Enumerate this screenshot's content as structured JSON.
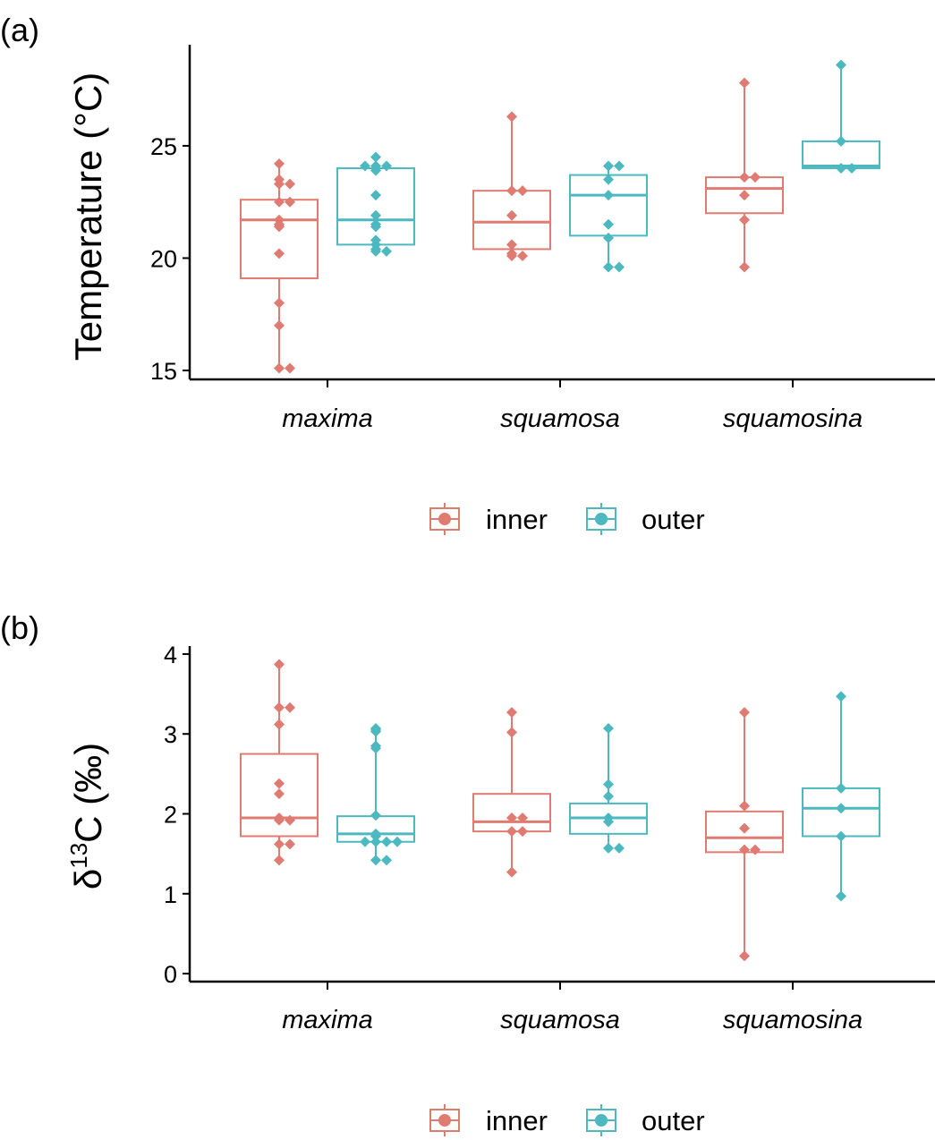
{
  "colors": {
    "inner": "#E07B72",
    "outer": "#4CB8C0",
    "axis": "#000000"
  },
  "chart_data": [
    {
      "type": "box",
      "panel_label": "(a)",
      "ylabel": "Temperature (°C)",
      "ylim": [
        14.6,
        29.5
      ],
      "yticks": [
        "15",
        "20",
        "25"
      ],
      "ytick_values": [
        15,
        20,
        25
      ],
      "categories": [
        "maxima",
        "squamosa",
        "squamosina"
      ],
      "legend": [
        "inner",
        "outer"
      ],
      "series": [
        {
          "name": "inner",
          "boxes": [
            {
              "q1": 19.1,
              "median": 21.7,
              "q3": 22.6,
              "whisker_low": 15.1,
              "whisker_high": 24.2,
              "points": [
                24.2,
                23.5,
                23.3,
                23.3,
                22.5,
                22.5,
                21.7,
                21.5,
                21.4,
                20.2,
                18.0,
                17.0,
                15.1,
                15.1
              ]
            },
            {
              "q1": 20.4,
              "median": 21.6,
              "q3": 23.0,
              "whisker_low": 20.1,
              "whisker_high": 26.3,
              "points": [
                26.3,
                23.0,
                23.0,
                21.9,
                20.6,
                20.2,
                20.1,
                20.1
              ]
            },
            {
              "q1": 22.0,
              "median": 23.1,
              "q3": 23.6,
              "whisker_low": 19.6,
              "whisker_high": 27.8,
              "points": [
                27.8,
                23.6,
                23.6,
                22.8,
                21.7,
                19.6
              ]
            }
          ]
        },
        {
          "name": "outer",
          "boxes": [
            {
              "q1": 20.6,
              "median": 21.7,
              "q3": 24.0,
              "whisker_low": 20.3,
              "whisker_high": 24.5,
              "points": [
                24.5,
                24.1,
                24.1,
                24.1,
                23.9,
                22.8,
                21.9,
                21.5,
                21.4,
                20.8,
                20.6,
                20.4,
                20.3,
                20.3
              ]
            },
            {
              "q1": 21.0,
              "median": 22.8,
              "q3": 23.7,
              "whisker_low": 19.6,
              "whisker_high": 24.1,
              "points": [
                24.1,
                24.1,
                23.5,
                22.8,
                21.5,
                20.9,
                19.6,
                19.6
              ]
            },
            {
              "q1": 24.0,
              "median": 24.1,
              "q3": 25.2,
              "whisker_low": 24.0,
              "whisker_high": 28.6,
              "points": [
                28.6,
                25.2,
                24.0,
                24.0
              ]
            }
          ]
        }
      ]
    },
    {
      "type": "box",
      "panel_label": "(b)",
      "ylabel_prefix": "δ",
      "ylabel_sup": "13",
      "ylabel_rest": "C (‰)",
      "ylim": [
        -0.1,
        4.1
      ],
      "yticks": [
        "0",
        "1",
        "2",
        "3",
        "4"
      ],
      "ytick_values": [
        0,
        1,
        2,
        3,
        4
      ],
      "categories": [
        "maxima",
        "squamosa",
        "squamosina"
      ],
      "legend": [
        "inner",
        "outer"
      ],
      "series": [
        {
          "name": "inner",
          "boxes": [
            {
              "q1": 1.72,
              "median": 1.95,
              "q3": 2.75,
              "whisker_low": 1.42,
              "whisker_high": 3.87,
              "points": [
                3.87,
                3.33,
                3.33,
                3.12,
                2.38,
                2.25,
                1.95,
                1.92,
                1.92,
                1.62,
                1.62,
                1.42
              ]
            },
            {
              "q1": 1.78,
              "median": 1.9,
              "q3": 2.25,
              "whisker_low": 1.27,
              "whisker_high": 3.27,
              "points": [
                3.27,
                3.02,
                1.95,
                1.95,
                1.78,
                1.78,
                1.27
              ]
            },
            {
              "q1": 1.52,
              "median": 1.7,
              "q3": 2.03,
              "whisker_low": 0.22,
              "whisker_high": 3.27,
              "points": [
                3.27,
                2.1,
                1.82,
                1.55,
                1.55,
                0.22
              ]
            }
          ]
        },
        {
          "name": "outer",
          "boxes": [
            {
              "q1": 1.65,
              "median": 1.75,
              "q3": 1.97,
              "whisker_low": 1.42,
              "whisker_high": 3.07,
              "points": [
                3.07,
                3.05,
                3.03,
                2.85,
                2.82,
                1.98,
                1.75,
                1.72,
                1.65,
                1.65,
                1.65,
                1.65,
                1.42,
                1.42
              ]
            },
            {
              "q1": 1.75,
              "median": 1.95,
              "q3": 2.13,
              "whisker_low": 1.57,
              "whisker_high": 3.07,
              "points": [
                3.07,
                2.37,
                2.22,
                1.95,
                1.9,
                1.57,
                1.57
              ]
            },
            {
              "q1": 1.72,
              "median": 2.07,
              "q3": 2.32,
              "whisker_low": 0.97,
              "whisker_high": 3.47,
              "points": [
                3.47,
                2.32,
                2.07,
                1.72,
                0.97
              ]
            }
          ]
        }
      ]
    }
  ]
}
